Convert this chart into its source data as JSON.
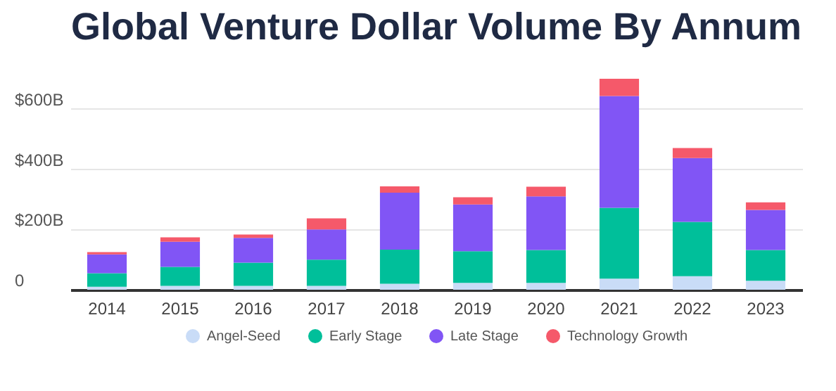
{
  "chart_data": {
    "type": "bar",
    "title": "Global Venture Dollar Volume By Annum",
    "stacked": true,
    "categories": [
      "2014",
      "2015",
      "2016",
      "2017",
      "2018",
      "2019",
      "2020",
      "2021",
      "2022",
      "2023"
    ],
    "series": [
      {
        "name": "Angel-Seed",
        "color": "#c9dcf7",
        "values": [
          10,
          13,
          13,
          13,
          20,
          23,
          23,
          37,
          45,
          30
        ]
      },
      {
        "name": "Early Stage",
        "color": "#00bf9a",
        "values": [
          45,
          63,
          77,
          87,
          113,
          105,
          109,
          235,
          180,
          102
        ]
      },
      {
        "name": "Late Stage",
        "color": "#8155f5",
        "values": [
          62,
          83,
          82,
          100,
          189,
          155,
          178,
          371,
          212,
          133
        ]
      },
      {
        "name": "Technology Growth",
        "color": "#f5596a",
        "values": [
          8,
          15,
          11,
          37,
          21,
          24,
          32,
          57,
          33,
          25
        ]
      }
    ],
    "ylim": [
      0,
      700
    ],
    "yticks": [
      0,
      {
        "value": 200,
        "label": "$200B"
      },
      {
        "value": 400,
        "label": "$400B"
      },
      {
        "value": 600,
        "label": "$600B"
      }
    ],
    "grid": "y",
    "legend": "bottom"
  }
}
